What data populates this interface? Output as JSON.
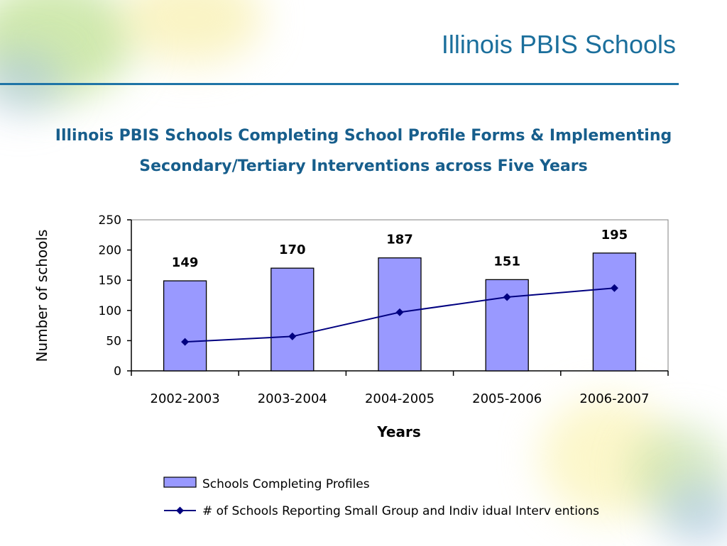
{
  "slide": {
    "title": "Illinois PBIS Schools"
  },
  "chart_data": {
    "type": "bar",
    "title_lines": [
      "Illinois PBIS Schools Completing School Profile Forms & Implementing",
      "Secondary/Tertiary Interventions across Five Years"
    ],
    "xlabel": "Years",
    "ylabel": "Number of schools",
    "categories": [
      "2002-2003",
      "2003-2004",
      "2004-2005",
      "2005-2006",
      "2006-2007"
    ],
    "ylim": [
      0,
      250
    ],
    "yticks": [
      0,
      50,
      100,
      150,
      200,
      250
    ],
    "grid": false,
    "legend_position": "bottom",
    "series": [
      {
        "name": "Schools Completing Profiles",
        "type": "bar",
        "values": [
          149,
          170,
          187,
          151,
          195
        ],
        "data_labels": [
          "149",
          "170",
          "187",
          "151",
          "195"
        ],
        "color": "#9999ff"
      },
      {
        "name": "# of Schools Reporting Small Group and Indiv idual Interv entions",
        "type": "line",
        "values": [
          48,
          57,
          97,
          122,
          137
        ],
        "color": "#000080"
      }
    ]
  }
}
